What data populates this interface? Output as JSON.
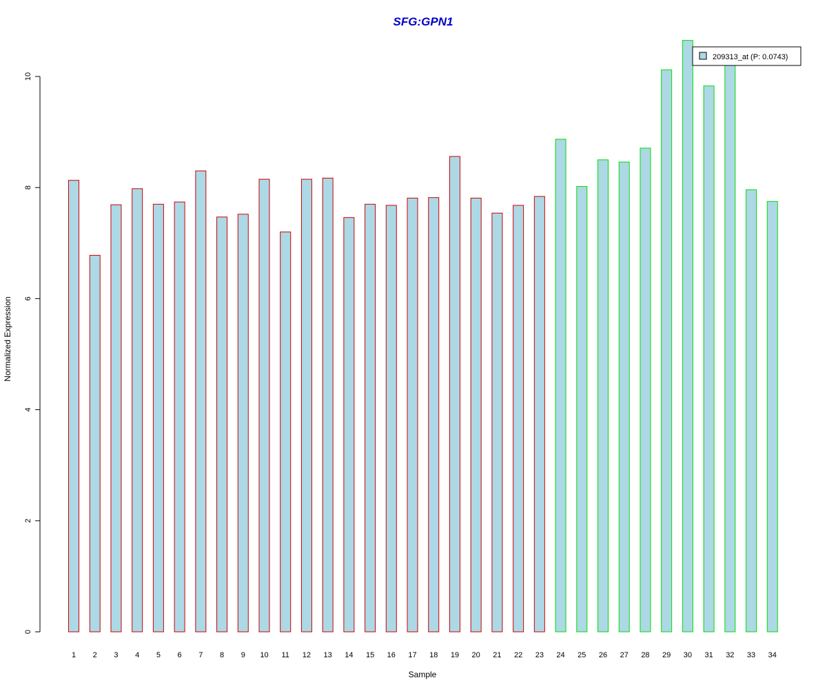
{
  "chart_data": {
    "type": "bar",
    "title": "SFG:GPN1",
    "xlabel": "Sample",
    "ylabel": "Normalized Expression",
    "ylim": [
      0,
      10
    ],
    "yticks": [
      0,
      2,
      4,
      6,
      8,
      10
    ],
    "categories": [
      "1",
      "2",
      "3",
      "4",
      "5",
      "6",
      "7",
      "8",
      "9",
      "10",
      "11",
      "12",
      "13",
      "14",
      "15",
      "16",
      "17",
      "18",
      "19",
      "20",
      "21",
      "22",
      "23",
      "24",
      "25",
      "26",
      "27",
      "28",
      "29",
      "30",
      "31",
      "32",
      "33",
      "34"
    ],
    "series": [
      {
        "name": "209313_at (P: 0.0743)",
        "values": [
          8.13,
          6.78,
          7.69,
          7.98,
          7.7,
          7.74,
          8.3,
          7.47,
          7.52,
          8.15,
          7.2,
          8.15,
          8.17,
          7.46,
          7.7,
          7.68,
          7.81,
          7.82,
          8.56,
          7.81,
          7.54,
          7.68,
          7.84,
          8.87,
          8.02,
          8.5,
          8.46,
          8.71,
          10.12,
          10.65,
          9.83,
          10.22,
          7.96,
          7.75
        ]
      }
    ],
    "groups": [
      {
        "samples": [
          1,
          23
        ],
        "border_color": "#cc0000"
      },
      {
        "samples": [
          24,
          34
        ],
        "border_color": "#00dd00"
      }
    ],
    "fill_color": "#add8e6",
    "title_color": "#0000cc",
    "grid": false,
    "legend_position": "top-right",
    "legend": "209313_at (P: 0.0743)"
  }
}
